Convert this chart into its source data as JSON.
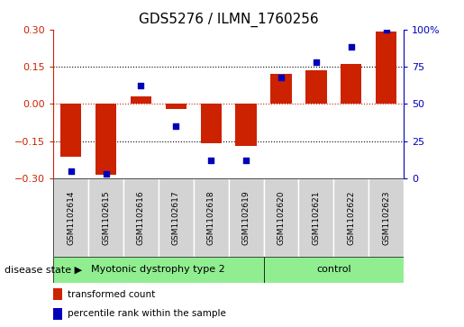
{
  "title": "GDS5276 / ILMN_1760256",
  "samples": [
    "GSM1102614",
    "GSM1102615",
    "GSM1102616",
    "GSM1102617",
    "GSM1102618",
    "GSM1102619",
    "GSM1102620",
    "GSM1102621",
    "GSM1102622",
    "GSM1102623"
  ],
  "transformed_count": [
    -0.215,
    -0.285,
    0.03,
    -0.02,
    -0.16,
    -0.17,
    0.12,
    0.135,
    0.16,
    0.29
  ],
  "percentile_rank": [
    5,
    3,
    62,
    35,
    12,
    12,
    68,
    78,
    88,
    100
  ],
  "disease_groups": [
    {
      "label": "Myotonic dystrophy type 2",
      "n_samples": 6,
      "color": "#90EE90"
    },
    {
      "label": "control",
      "n_samples": 4,
      "color": "#90EE90"
    }
  ],
  "group_boundary": 6,
  "ylim_left": [
    -0.3,
    0.3
  ],
  "ylim_right": [
    0,
    100
  ],
  "yticks_left": [
    -0.3,
    -0.15,
    0,
    0.15,
    0.3
  ],
  "yticks_right": [
    0,
    25,
    50,
    75,
    100
  ],
  "ytick_labels_right": [
    "0",
    "25",
    "50",
    "75",
    "100%"
  ],
  "bar_color": "#CC2200",
  "dot_color": "#0000BB",
  "background_color": "#FFFFFF",
  "gray_box_color": "#D3D3D3",
  "title_fontsize": 11,
  "tick_fontsize": 8,
  "sample_fontsize": 6.5,
  "disease_fontsize": 8,
  "legend_fontsize": 7.5,
  "label_legend_transformed": "transformed count",
  "label_legend_percentile": "percentile rank within the sample",
  "disease_state_label": "disease state"
}
